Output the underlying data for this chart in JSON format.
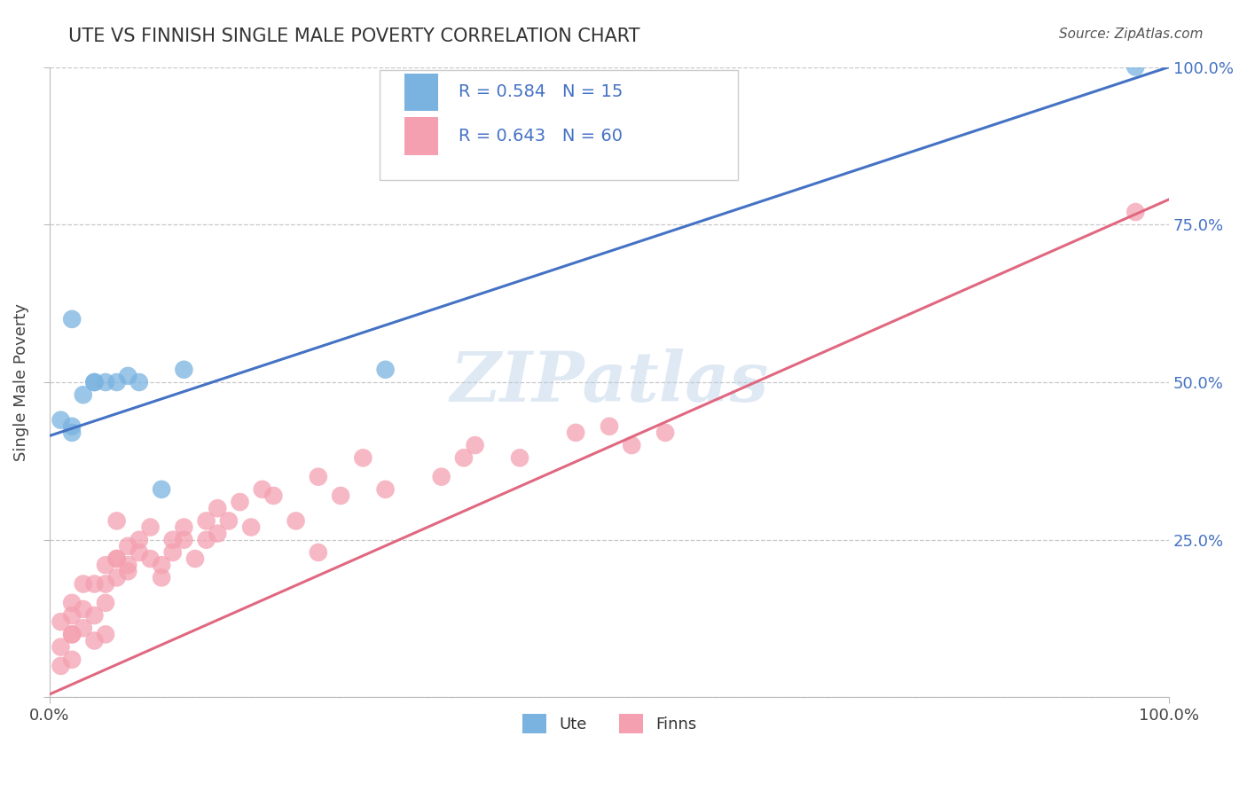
{
  "title": "UTE VS FINNISH SINGLE MALE POVERTY CORRELATION CHART",
  "source": "Source: ZipAtlas.com",
  "ylabel": "Single Male Poverty",
  "xlim": [
    0,
    1
  ],
  "ylim": [
    0,
    1
  ],
  "ute_scatter_color": "#7ab3e0",
  "finn_scatter_color": "#f4a0b0",
  "blue_line_color": "#4472c4",
  "pink_line_color": "#e06880",
  "legend_blue_label": "R = 0.584   N = 15",
  "legend_pink_label": "R = 0.643   N = 60",
  "legend_ute_label": "Ute",
  "legend_finn_label": "Finns",
  "grid_color": "#c8c8c8",
  "background_color": "#ffffff",
  "watermark": "ZIPatlas",
  "ute_intercept": 0.415,
  "ute_slope": 0.585,
  "finn_intercept": 0.005,
  "finn_slope": 0.785,
  "ute_points_x": [
    0.01,
    0.02,
    0.02,
    0.02,
    0.03,
    0.04,
    0.04,
    0.05,
    0.06,
    0.07,
    0.08,
    0.1,
    0.12,
    0.3,
    0.97
  ],
  "ute_points_y": [
    0.44,
    0.42,
    0.6,
    0.43,
    0.48,
    0.5,
    0.5,
    0.5,
    0.5,
    0.51,
    0.5,
    0.33,
    0.52,
    0.52,
    1.0
  ],
  "finn_points_x": [
    0.01,
    0.01,
    0.01,
    0.02,
    0.02,
    0.02,
    0.02,
    0.02,
    0.03,
    0.03,
    0.03,
    0.04,
    0.04,
    0.04,
    0.05,
    0.05,
    0.05,
    0.05,
    0.06,
    0.06,
    0.06,
    0.06,
    0.07,
    0.07,
    0.07,
    0.08,
    0.08,
    0.09,
    0.09,
    0.1,
    0.1,
    0.11,
    0.11,
    0.12,
    0.12,
    0.13,
    0.14,
    0.14,
    0.15,
    0.15,
    0.16,
    0.17,
    0.18,
    0.19,
    0.2,
    0.22,
    0.24,
    0.26,
    0.28,
    0.3,
    0.35,
    0.37,
    0.38,
    0.42,
    0.47,
    0.5,
    0.52,
    0.55,
    0.24,
    0.97
  ],
  "finn_points_y": [
    0.05,
    0.08,
    0.12,
    0.1,
    0.13,
    0.15,
    0.1,
    0.06,
    0.11,
    0.14,
    0.18,
    0.13,
    0.18,
    0.09,
    0.18,
    0.21,
    0.15,
    0.1,
    0.22,
    0.19,
    0.22,
    0.28,
    0.21,
    0.2,
    0.24,
    0.23,
    0.25,
    0.22,
    0.27,
    0.21,
    0.19,
    0.25,
    0.23,
    0.27,
    0.25,
    0.22,
    0.28,
    0.25,
    0.3,
    0.26,
    0.28,
    0.31,
    0.27,
    0.33,
    0.32,
    0.28,
    0.35,
    0.32,
    0.38,
    0.33,
    0.35,
    0.38,
    0.4,
    0.38,
    0.42,
    0.43,
    0.4,
    0.42,
    0.23,
    0.77
  ]
}
